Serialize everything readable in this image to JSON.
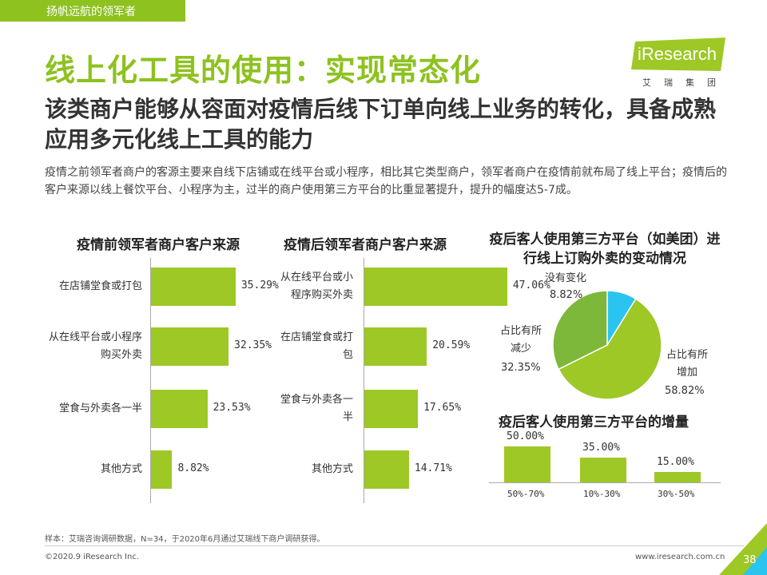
{
  "header": {
    "tag": "扬帆远航的领军者",
    "title": "线上化工具的使用：实现常态化",
    "subtitle": "该类商户能够从容面对疫情后线下订单向线上业务的转化，具备成熟应用多元化线上工具的能力",
    "description": "疫情之前领军者商户的客源主要来自线下店铺或在线平台或小程序，相比其它类型商户，领军者商户在疫情前就布局了线上平台；疫情后的客户来源以线上餐饮平台、小程序为主，过半的商户使用第三方平台的比重显著提升，提升的幅度达5-7成。"
  },
  "logo": {
    "name": "iResearch",
    "sub": "艾瑞集团"
  },
  "colors": {
    "accent": "#8dc21f",
    "bar": "#9dc826",
    "pie_increase": "#9dc826",
    "pie_decrease": "#7db83a",
    "pie_none": "#29c4ef"
  },
  "chart_data": [
    {
      "type": "bar",
      "title": "疫情前领军者商户客户来源",
      "categories": [
        "在店铺堂食或打包",
        "从在线平台或小程序购买外卖",
        "堂食与外卖各一半",
        "其他方式"
      ],
      "values": [
        35.29,
        32.35,
        23.53,
        8.82
      ],
      "labels": [
        "35.29%",
        "32.35%",
        "23.53%",
        "8.82%"
      ]
    },
    {
      "type": "bar",
      "title": "疫情后领军者商户客户来源",
      "categories": [
        "从在线平台或小程序购买外卖",
        "在店铺堂食或打包",
        "堂食与外卖各一半",
        "其他方式"
      ],
      "values": [
        47.06,
        20.59,
        17.65,
        14.71
      ],
      "labels": [
        "47.06%",
        "20.59%",
        "17.65%",
        "14.71%"
      ]
    },
    {
      "type": "pie",
      "title": "疫后客人使用第三方平台（如美团）进行线上订购外卖的变动情况",
      "slices": [
        {
          "name": "占比有所增加",
          "value": 58.82,
          "label": "58.82%"
        },
        {
          "name": "占比有所减少",
          "value": 32.35,
          "label": "32.35%"
        },
        {
          "name": "没有变化",
          "value": 8.82,
          "label": "8.82%"
        }
      ]
    },
    {
      "type": "bar",
      "title": "疫后客人使用第三方平台的增量",
      "categories": [
        "50%-70%",
        "10%-30%",
        "30%-50%"
      ],
      "values": [
        50.0,
        35.0,
        15.0
      ],
      "labels": [
        "50.00%",
        "35.00%",
        "15.00%"
      ]
    }
  ],
  "footer": {
    "note": "样本：艾瑞咨询调研数据，N=34，于2020年6月通过艾瑞线下商户调研获得。",
    "copyright": "©2020.9 iResearch Inc.",
    "url": "www.iresearch.com.cn",
    "page": "38"
  }
}
